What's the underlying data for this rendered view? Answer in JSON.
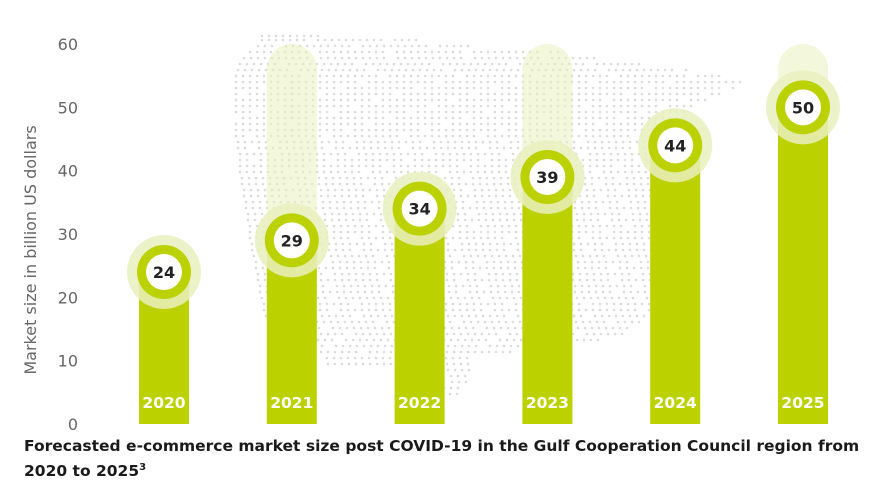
{
  "chart_data": {
    "type": "bar",
    "categories": [
      "2020",
      "2021",
      "2022",
      "2023",
      "2024",
      "2025"
    ],
    "values": [
      24,
      29,
      34,
      39,
      44,
      50
    ],
    "data_labels": [
      "24",
      "29",
      "34",
      "39",
      "44",
      "50"
    ],
    "ylabel": "Market size in billion US dollars",
    "ylim": [
      0,
      60
    ],
    "yticks": [
      "0",
      "10",
      "20",
      "30",
      "40",
      "50",
      "60"
    ],
    "grid": false,
    "legend": "none",
    "colors": {
      "bar": "#bcd100",
      "halo": "#e9f0bd",
      "label_circle": "#ffffff",
      "map_dots": "#dcdcdc"
    }
  },
  "caption": {
    "text": "Forecasted e-commerce market size post COVID-19 in the Gulf Cooperation Council region from 2020 to 2025",
    "footnote": "3"
  }
}
